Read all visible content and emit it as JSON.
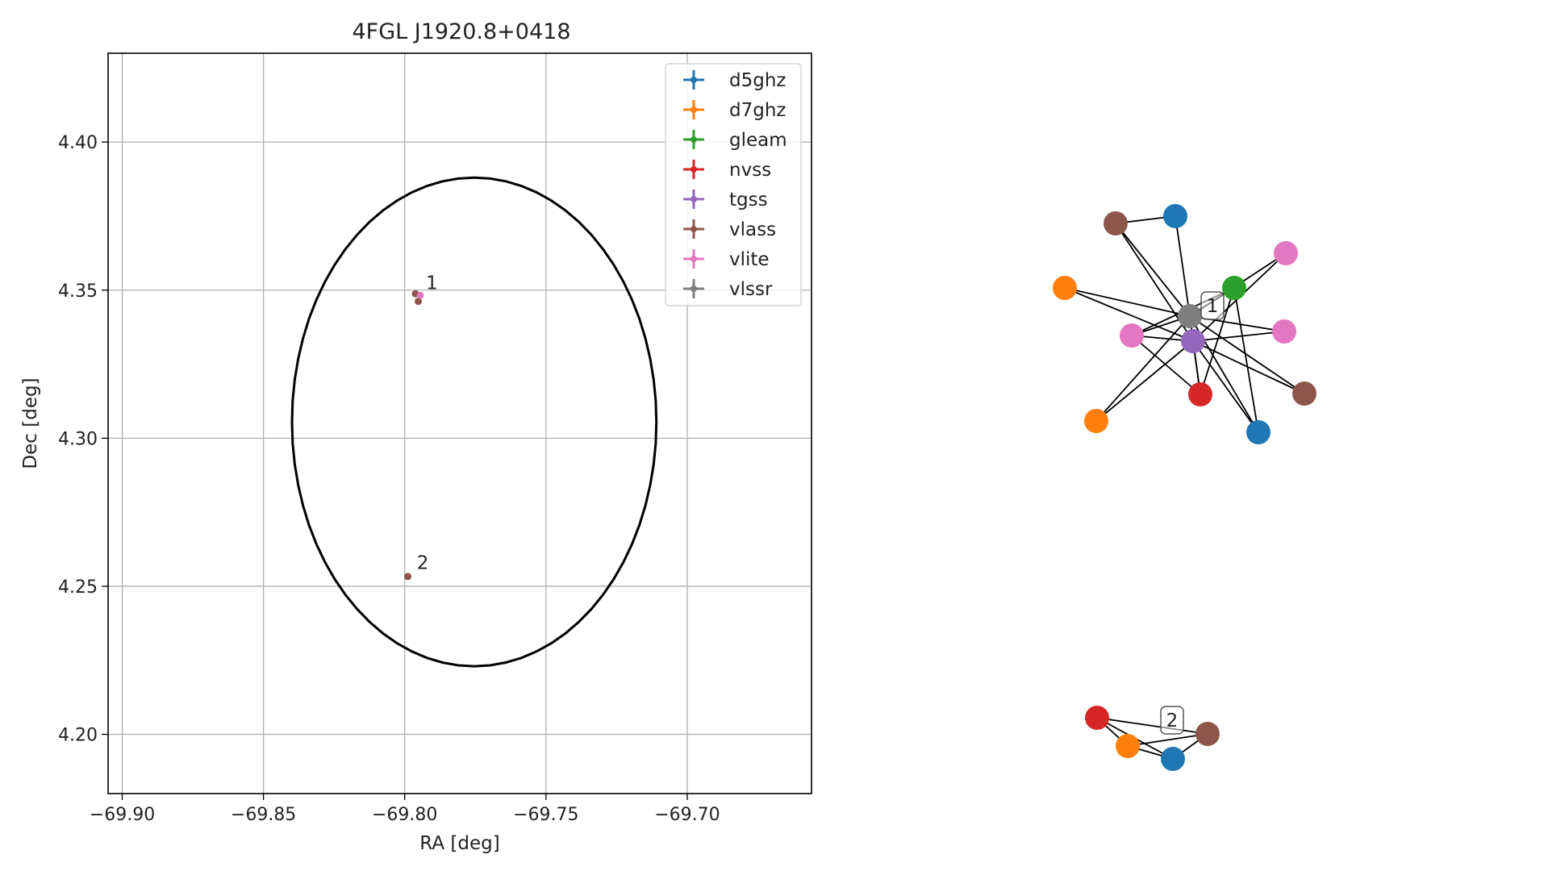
{
  "chart_data": [
    {
      "type": "scatter",
      "title": "4FGL J1920.8+0418",
      "xlabel": "RA [deg]",
      "ylabel": "Dec [deg]",
      "xlim": [
        -69.905,
        -69.656
      ],
      "ylim": [
        4.18,
        4.43
      ],
      "xticks": [
        -69.9,
        -69.85,
        -69.8,
        -69.75,
        -69.7
      ],
      "xtick_labels": [
        "−69.90",
        "−69.85",
        "−69.80",
        "−69.75",
        "−69.70"
      ],
      "yticks": [
        4.2,
        4.25,
        4.3,
        4.35,
        4.4
      ],
      "ytick_labels": [
        "4.20",
        "4.25",
        "4.30",
        "4.35",
        "4.40"
      ],
      "grid": true,
      "legend_position": "top-right",
      "series": [
        {
          "name": "d5ghz",
          "color": "#1f77b4",
          "points": []
        },
        {
          "name": "d7ghz",
          "color": "#ff7f0e",
          "points": []
        },
        {
          "name": "gleam",
          "color": "#2ca02c",
          "points": []
        },
        {
          "name": "nvss",
          "color": "#d62728",
          "points": []
        },
        {
          "name": "tgss",
          "color": "#9467bd",
          "points": []
        },
        {
          "name": "vlass",
          "color": "#8c564b",
          "points": [
            [
              -69.7962,
              4.3488
            ],
            [
              -69.7952,
              4.3462
            ],
            [
              -69.7989,
              4.2533
            ]
          ]
        },
        {
          "name": "vlite",
          "color": "#e377c2",
          "points": [
            [
              -69.7945,
              4.3482
            ]
          ]
        },
        {
          "name": "vlssr",
          "color": "#7f7f7f",
          "points": []
        }
      ],
      "ellipse": {
        "center": [
          -69.7754,
          4.3055
        ],
        "semi_axis_ra": 0.0645,
        "semi_axis_dec": 0.0825,
        "color": "#000000"
      },
      "annotations": [
        {
          "text": "1",
          "x": -69.7925,
          "y": 4.3503
        },
        {
          "text": "2",
          "x": -69.7957,
          "y": 4.2558
        }
      ]
    },
    {
      "type": "network",
      "node_colors": {
        "d5ghz": "#1f77b4",
        "d7ghz": "#ff7f0e",
        "gleam": "#2ca02c",
        "nvss": "#d62728",
        "tgss": "#9467bd",
        "vlass": "#8c564b",
        "vlite": "#e377c2",
        "vlssr": "#7f7f7f"
      },
      "groups": [
        {
          "label": "1",
          "nodes": [
            "vlass",
            "d5ghz",
            "vlite",
            "d7ghz",
            "gleam",
            "vlssr",
            "vlite",
            "tgss",
            "vlite",
            "nvss",
            "vlass",
            "d7ghz",
            "d5ghz"
          ]
        },
        {
          "label": "2",
          "nodes": [
            "nvss",
            "d7ghz",
            "d5ghz",
            "vlass"
          ]
        }
      ]
    }
  ]
}
